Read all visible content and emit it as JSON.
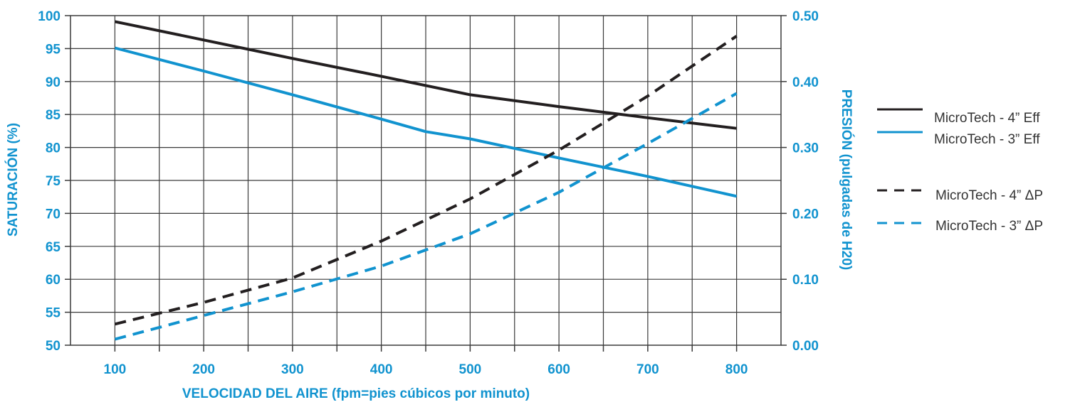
{
  "chart_data": {
    "type": "line",
    "xlabel": "VELOCIDAD DEL AIRE (fpm=pies cúbicos por minuto)",
    "ylabel_left": "SATURACIÓN (%)",
    "ylabel_right": "PRESIÓN (pulgadas de H20)",
    "x_ticks": [
      "100",
      "200",
      "300",
      "400",
      "500",
      "600",
      "700",
      "800"
    ],
    "xlim": [
      50,
      850
    ],
    "ylim_left": [
      50,
      100
    ],
    "ylim_right": [
      0,
      0.5
    ],
    "y_ticks_left": [
      "100",
      "95",
      "90",
      "85",
      "80",
      "75",
      "70",
      "65",
      "60",
      "55",
      "50"
    ],
    "y_ticks_right": [
      "0.50",
      "0.40",
      "0.30",
      "0.20",
      "0.10",
      "0.00"
    ],
    "grid": true,
    "legend_position": "right",
    "series": [
      {
        "name": "MicroTech - 4” Eff",
        "axis": "left",
        "style": "solid",
        "color": "#231f20",
        "x": [
          100,
          200,
          300,
          400,
          450,
          500,
          600,
          700,
          800
        ],
        "y": [
          99.1,
          96.3,
          93.5,
          90.8,
          89.4,
          88.0,
          86.2,
          84.5,
          82.9
        ]
      },
      {
        "name": "MicroTech - 3” Eff",
        "axis": "left",
        "style": "solid",
        "color": "#1193cf",
        "x": [
          100,
          200,
          300,
          400,
          450,
          500,
          600,
          700,
          800
        ],
        "y": [
          95.1,
          91.6,
          88.0,
          84.3,
          82.4,
          81.3,
          78.4,
          75.6,
          72.6
        ]
      },
      {
        "name": "MicroTech - 4” ΔP",
        "axis": "right",
        "style": "dashed",
        "color": "#231f20",
        "x": [
          100,
          200,
          300,
          400,
          500,
          600,
          700,
          800
        ],
        "y": [
          0.032,
          0.065,
          0.102,
          0.158,
          0.222,
          0.296,
          0.378,
          0.469
        ]
      },
      {
        "name": "MicroTech - 3” ΔP",
        "axis": "right",
        "style": "dashed",
        "color": "#1193cf",
        "x": [
          100,
          200,
          300,
          400,
          500,
          600,
          700,
          800
        ],
        "y": [
          0.009,
          0.045,
          0.081,
          0.12,
          0.169,
          0.232,
          0.306,
          0.382
        ]
      }
    ]
  },
  "colors": {
    "accent": "#1193cf",
    "dark": "#231f20",
    "grid": "#3a3a3a"
  }
}
